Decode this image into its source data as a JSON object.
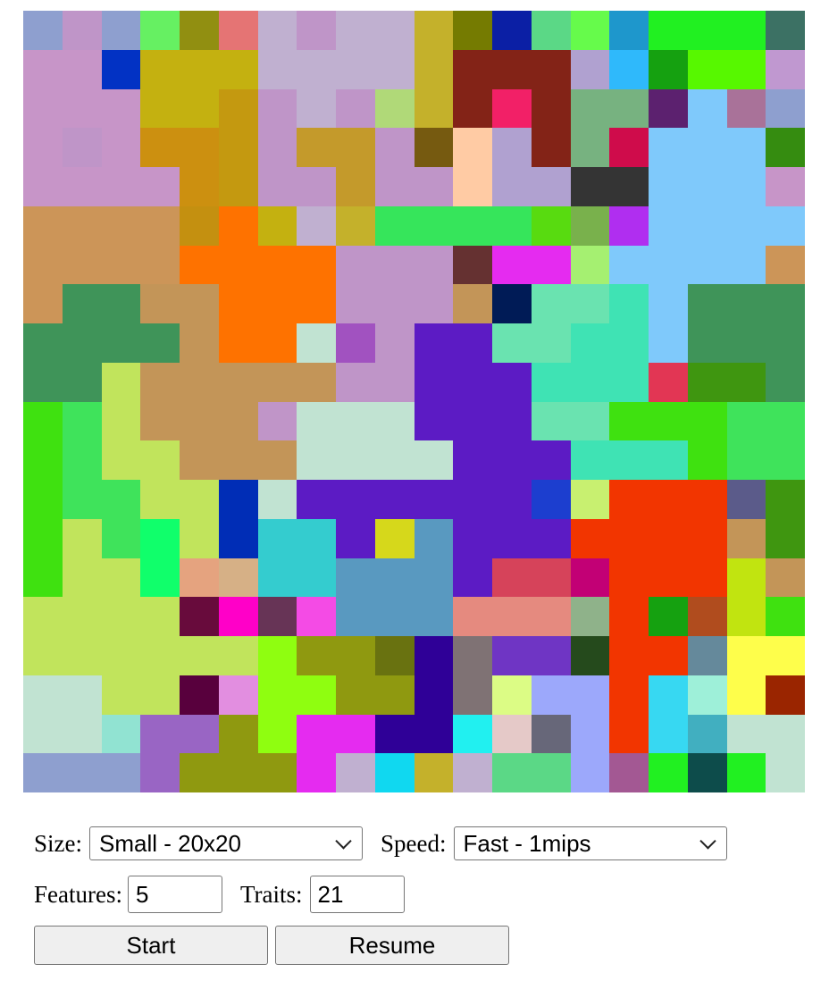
{
  "board": {
    "size": 20,
    "colors": [
      [
        "#8e9fcf",
        "#bf95c8",
        "#8e9fcf",
        "#66f062",
        "#918f11",
        "#e57474",
        "#c0b0d0",
        "#bf95c8",
        "#c0b0d0",
        "#c0b0d0",
        "#c4b12b",
        "#757b01",
        "#0b1fa5",
        "#5bd886",
        "#66fb4b",
        "#1e97cc",
        "#21f021",
        "#21f021",
        "#21f021",
        "#3c7164"
      ],
      [
        "#c795c8",
        "#c795c8",
        "#0232c4",
        "#c4b110",
        "#c4b110",
        "#c4b110",
        "#c0b0d0",
        "#c0b0d0",
        "#c0b0d0",
        "#c0b0d0",
        "#c4b12b",
        "#832317",
        "#832317",
        "#832317",
        "#b0a1d0",
        "#2fb9fb",
        "#15a110",
        "#57f800",
        "#57f800",
        "#c098d0"
      ],
      [
        "#c795c8",
        "#c795c8",
        "#c795c8",
        "#c4b110",
        "#c4b110",
        "#c49910",
        "#bf95c8",
        "#c0b0d0",
        "#bf95c8",
        "#b0d978",
        "#c4b12b",
        "#832317",
        "#f22067",
        "#832317",
        "#77b280",
        "#77b280",
        "#5c216f",
        "#7fc9fb",
        "#a97299",
        "#8e9fcf"
      ],
      [
        "#c795c8",
        "#bf95c8",
        "#c795c8",
        "#cc9010",
        "#cc9010",
        "#c49910",
        "#bf95c8",
        "#c49a2b",
        "#c49a2b",
        "#bf95c8",
        "#765a10",
        "#ffcba4",
        "#b0a1d0",
        "#832317",
        "#77b280",
        "#cf0c4b",
        "#7fc9fb",
        "#7fc9fb",
        "#7fc9fb",
        "#358c10"
      ],
      [
        "#c795c8",
        "#c795c8",
        "#c795c8",
        "#c795c8",
        "#cc9010",
        "#c49910",
        "#bf95c8",
        "#bf95c8",
        "#c49a2b",
        "#bf95c8",
        "#bf95c8",
        "#ffcba4",
        "#b0a1d0",
        "#b0a1d0",
        "#343434",
        "#343434",
        "#7fc9fb",
        "#7fc9fb",
        "#7fc9fb",
        "#c795c8"
      ],
      [
        "#cc9558",
        "#cc9558",
        "#cc9558",
        "#cc9558",
        "#c49010",
        "#fe7200",
        "#c4b110",
        "#c0b0d0",
        "#c4b12b",
        "#36e55b",
        "#36e55b",
        "#36e55b",
        "#36e55b",
        "#58db10",
        "#79b14c",
        "#b02ef0",
        "#7fc9fb",
        "#7fc9fb",
        "#7fc9fb",
        "#7fc9fb"
      ],
      [
        "#cc9558",
        "#cc9558",
        "#cc9558",
        "#cc9558",
        "#fe7200",
        "#fe7200",
        "#fe7200",
        "#fe7200",
        "#bf95c8",
        "#bf95c8",
        "#bf95c8",
        "#653131",
        "#e52bf0",
        "#e52bf0",
        "#a5f071",
        "#7fc9fb",
        "#7fc9fb",
        "#7fc9fb",
        "#7fc9fb",
        "#cc9558"
      ],
      [
        "#cc9558",
        "#3f9459",
        "#3f9459",
        "#c39558",
        "#c39558",
        "#fe7200",
        "#fe7200",
        "#fe7200",
        "#bf95c8",
        "#bf95c8",
        "#bf95c8",
        "#c39558",
        "#001b56",
        "#6ae3b0",
        "#6ae3b0",
        "#3fe3b4",
        "#7fc9fb",
        "#3f9459",
        "#3f9459",
        "#3f9459"
      ],
      [
        "#3f9459",
        "#3f9459",
        "#3f9459",
        "#3f9459",
        "#c39558",
        "#fe7200",
        "#fe7200",
        "#c1e3d2",
        "#a152c0",
        "#bf95c8",
        "#5c1bc4",
        "#5c1bc4",
        "#6ae3b0",
        "#6ae3b0",
        "#3fe3b4",
        "#3fe3b4",
        "#7fc9fb",
        "#3f9459",
        "#3f9459",
        "#3f9459"
      ],
      [
        "#3f9459",
        "#3f9459",
        "#c1e45c",
        "#c39558",
        "#c39558",
        "#c39558",
        "#c39558",
        "#c39558",
        "#bf95c8",
        "#bf95c8",
        "#5c1bc4",
        "#5c1bc4",
        "#5c1bc4",
        "#3fe3b4",
        "#3fe3b4",
        "#3fe3b4",
        "#e23654",
        "#3f9610",
        "#3f9610",
        "#3f9459"
      ],
      [
        "#3fe110",
        "#3fe35b",
        "#c1e45c",
        "#c39558",
        "#c39558",
        "#c39558",
        "#c095c8",
        "#c1e3d2",
        "#c1e3d2",
        "#c1e3d2",
        "#5c1bc4",
        "#5c1bc4",
        "#5c1bc4",
        "#6ae3b0",
        "#6ae3b0",
        "#3fe110",
        "#3fe110",
        "#3fe110",
        "#3fe35b",
        "#3fe35b"
      ],
      [
        "#3fe110",
        "#3fe35b",
        "#c1e45c",
        "#c1e45c",
        "#c39558",
        "#c39558",
        "#c39558",
        "#c1e3d2",
        "#c1e3d2",
        "#c1e3d2",
        "#c1e3d2",
        "#5c1bc4",
        "#5c1bc4",
        "#5c1bc4",
        "#3fe3b4",
        "#3fe3b4",
        "#3fe3b4",
        "#3fe110",
        "#3fe35b",
        "#3fe35b"
      ],
      [
        "#3fe110",
        "#3fe35b",
        "#3fe35b",
        "#c1e45c",
        "#c1e45c",
        "#002db6",
        "#c1e3d2",
        "#5c1bc4",
        "#5c1bc4",
        "#5c1bc4",
        "#5c1bc4",
        "#5c1bc4",
        "#5c1bc4",
        "#1c3ecf",
        "#c8f070",
        "#f23500",
        "#f23500",
        "#f23500",
        "#5b5b8a",
        "#3f9610"
      ],
      [
        "#3fe110",
        "#c1e45c",
        "#3fe35b",
        "#10ff6b",
        "#c1e45c",
        "#002db6",
        "#34cccf",
        "#34cccf",
        "#5c1bc4",
        "#d6d81b",
        "#5999c0",
        "#5c1bc4",
        "#5c1bc4",
        "#5c1bc4",
        "#f23500",
        "#f23500",
        "#f23500",
        "#f23500",
        "#c39558",
        "#3f9610"
      ],
      [
        "#3fe110",
        "#c1e45c",
        "#c1e45c",
        "#10ff6b",
        "#e5a37f",
        "#d6b086",
        "#34cccf",
        "#34cccf",
        "#5999c0",
        "#5999c0",
        "#5999c0",
        "#5c1bc4",
        "#d6435a",
        "#d6435a",
        "#c20075",
        "#f23500",
        "#f23500",
        "#f23500",
        "#c1e410",
        "#c39558"
      ],
      [
        "#c1e45c",
        "#c1e45c",
        "#c1e45c",
        "#c1e45c",
        "#680b3c",
        "#ff00c8",
        "#673456",
        "#f44be5",
        "#5999c0",
        "#5999c0",
        "#5999c0",
        "#e58a7f",
        "#e58a7f",
        "#e58a7f",
        "#8fb28a",
        "#f23500",
        "#15a110",
        "#b04c1e",
        "#c1e410",
        "#3fe110"
      ],
      [
        "#c1e45c",
        "#c1e45c",
        "#c1e45c",
        "#c1e45c",
        "#c1e45c",
        "#c1e45c",
        "#8ffe10",
        "#8f9910",
        "#8f9910",
        "#697210",
        "#2f0097",
        "#7f7274",
        "#6f35c4",
        "#6f35c4",
        "#254a1c",
        "#f23500",
        "#f23500",
        "#65899b",
        "#fefe4b",
        "#fefe4b"
      ],
      [
        "#c1e3d2",
        "#c1e3d2",
        "#c1e45c",
        "#c1e45c",
        "#58003d",
        "#e28ee0",
        "#8ffe10",
        "#8ffe10",
        "#8f9910",
        "#8f9910",
        "#2f0097",
        "#7f7274",
        "#dcfc85",
        "#9ca8fb",
        "#9ca8fb",
        "#f23500",
        "#37d8f2",
        "#9ef0d9",
        "#fefe4b",
        "#9a2500"
      ],
      [
        "#c1e3d2",
        "#c1e3d2",
        "#91e3d2",
        "#9965c4",
        "#9965c4",
        "#8f9910",
        "#8ffe10",
        "#e52bf0",
        "#e52bf0",
        "#2f0097",
        "#2f0097",
        "#21f0f0",
        "#e5c9c8",
        "#676779",
        "#9ca8fb",
        "#f23500",
        "#37d8f2",
        "#41afc0",
        "#c1e3d2",
        "#c1e3d2"
      ],
      [
        "#8e9fcf",
        "#8e9fcf",
        "#8e9fcf",
        "#9965c4",
        "#8f9910",
        "#8f9910",
        "#8f9910",
        "#e52bf0",
        "#c0b0d0",
        "#10d8f0",
        "#c4b12b",
        "#c0b0d0",
        "#5bd886",
        "#5bd886",
        "#9ca8fb",
        "#a35893",
        "#21f021",
        "#0d4c4b",
        "#21f021",
        "#c1e3d2"
      ]
    ]
  },
  "controls": {
    "size_label": "Size:",
    "size_value": "Small - 20x20",
    "speed_label": "Speed:",
    "speed_value": "Fast - 1mips",
    "features_label": "Features:",
    "features_value": "5",
    "traits_label": "Traits:",
    "traits_value": "21",
    "start_label": "Start",
    "resume_label": "Resume"
  }
}
